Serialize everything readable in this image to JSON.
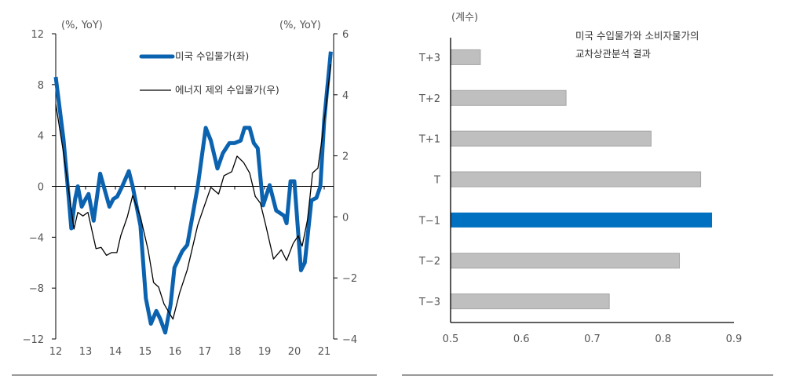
{
  "chart_data": [
    {
      "type": "line",
      "unit_left": "(%, YoY)",
      "unit_right": "(%, YoY)",
      "x_ticks": [
        "12",
        "13",
        "14",
        "15",
        "16",
        "17",
        "18",
        "19",
        "20",
        "21"
      ],
      "y_left": {
        "lim": [
          -12,
          12
        ],
        "ticks": [
          "12",
          "8",
          "4",
          "0",
          "−4",
          "−8",
          "−12"
        ]
      },
      "y_right": {
        "lim": [
          -4,
          6
        ],
        "ticks": [
          "6",
          "4",
          "2",
          "0",
          "−2",
          "−4"
        ]
      },
      "legend_position": "top-right",
      "series": [
        {
          "name": "미국 수입물가(좌)",
          "axis": "left",
          "color": "#0b63b0",
          "x": [
            2012.0,
            2012.26,
            2012.44,
            2012.52,
            2012.65,
            2012.74,
            2012.87,
            2013.0,
            2013.1,
            2013.27,
            2013.49,
            2013.8,
            2013.93,
            2014.06,
            2014.23,
            2014.45,
            2014.58,
            2014.84,
            2015.02,
            2015.19,
            2015.37,
            2015.5,
            2015.67,
            2015.85,
            2015.98,
            2016.24,
            2016.41,
            2016.76,
            2017.03,
            2017.2,
            2017.42,
            2017.6,
            2017.82,
            2017.99,
            2018.2,
            2018.33,
            2018.5,
            2018.64,
            2018.77,
            2018.95,
            2019.17,
            2019.39,
            2019.65,
            2019.74,
            2019.87,
            2020.0,
            2020.22,
            2020.35,
            2020.57,
            2020.74,
            2020.87,
            2021.0,
            2021.22
          ],
          "y": [
            8.6,
            3.7,
            -1,
            -3.3,
            -1,
            0,
            -1.6,
            -1,
            -0.6,
            -2.7,
            1,
            -1.6,
            -1,
            -0.8,
            0,
            1.2,
            0,
            -3.1,
            -8.8,
            -10.8,
            -9.8,
            -10.4,
            -11.5,
            -9.3,
            -6.4,
            -5.1,
            -4.6,
            0,
            4.6,
            3.6,
            1.4,
            2.6,
            3.4,
            3.4,
            3.6,
            4.6,
            4.6,
            3.4,
            3.0,
            -1.5,
            0.1,
            -1.9,
            -2.3,
            -2.9,
            0.4,
            0.4,
            -6.6,
            -6.0,
            -1.1,
            -0.9,
            0,
            5.2,
            10.6
          ]
        },
        {
          "name": "에너지 제외 수입물가(우)",
          "axis": "right",
          "color": "#000000",
          "x": [
            2012.0,
            2012.26,
            2012.61,
            2012.74,
            2012.91,
            2013.08,
            2013.35,
            2013.52,
            2013.7,
            2013.87,
            2014.05,
            2014.18,
            2014.4,
            2014.58,
            2014.84,
            2015.1,
            2015.28,
            2015.45,
            2015.63,
            2015.93,
            2016.15,
            2016.41,
            2016.76,
            2016.94,
            2017.2,
            2017.46,
            2017.64,
            2017.9,
            2018.08,
            2018.3,
            2018.5,
            2018.69,
            2018.86,
            2019.04,
            2019.3,
            2019.56,
            2019.74,
            2019.96,
            2020.13,
            2020.26,
            2020.44,
            2020.61,
            2020.79,
            2020.96,
            2021.22
          ],
          "y": [
            3.7,
            2.1,
            -0.4,
            0.15,
            0.03,
            0.15,
            -1.04,
            -1.0,
            -1.26,
            -1.17,
            -1.17,
            -0.62,
            0,
            0.7,
            0,
            -1.1,
            -2.15,
            -2.3,
            -2.85,
            -3.35,
            -2.5,
            -1.73,
            -0.27,
            0.24,
            0.97,
            0.75,
            1.35,
            1.48,
            1.99,
            1.78,
            1.44,
            0.67,
            0.45,
            -0.27,
            -1.38,
            -1.08,
            -1.43,
            -0.87,
            -0.62,
            -0.96,
            -0.1,
            1.44,
            1.6,
            2.8,
            5.0
          ]
        }
      ]
    },
    {
      "type": "bar",
      "orientation": "horizontal",
      "unit": "(계수)",
      "title_lines": [
        "미국 수입물가와 소비자물가의",
        "교차상관분석 결과"
      ],
      "categories": [
        "T+3",
        "T+2",
        "T+1",
        "T",
        "T−1",
        "T−2",
        "T−3"
      ],
      "values": [
        0.542,
        0.663,
        0.783,
        0.853,
        0.869,
        0.823,
        0.724
      ],
      "highlight": "T−1",
      "colors": {
        "bar": "#bfbfbf",
        "highlight": "#0070c0"
      },
      "xlim": [
        0.5,
        0.9
      ],
      "x_ticks": [
        "0.5",
        "0.6",
        "0.7",
        "0.8",
        "0.9"
      ]
    }
  ]
}
